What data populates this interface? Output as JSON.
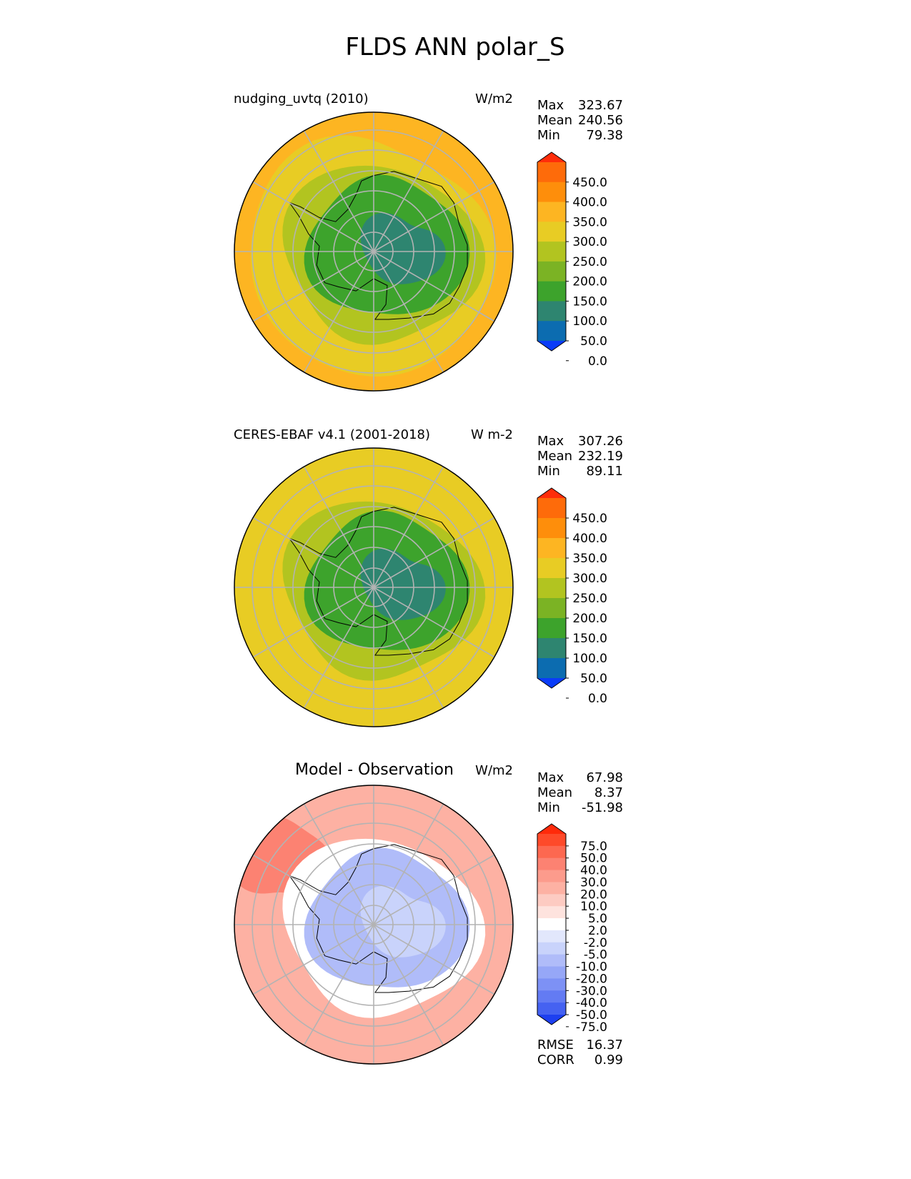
{
  "figure_title": "FLDS ANN polar_S",
  "chart_data": [
    {
      "type": "heatmap",
      "projection": "south polar stereographic",
      "title": "nudging_uvtq (2010)",
      "units": "W/m2",
      "stats": [
        {
          "label": "Max",
          "value": "323.67"
        },
        {
          "label": "Mean",
          "value": "240.56"
        },
        {
          "label": "Min",
          "value": "79.38"
        }
      ],
      "colorbar": {
        "tick_labels": [
          "450.0",
          "400.0",
          "350.0",
          "300.0",
          "250.0",
          "200.0",
          "150.0",
          "100.0",
          "50.0",
          "0.0"
        ],
        "colors": [
          "#ff2d0a",
          "#fe6b0a",
          "#fe8e0b",
          "#fdb522",
          "#e8cc24",
          "#b2c420",
          "#7bb324",
          "#3da32c",
          "#2e8570",
          "#0c6cb0",
          "#0a3cf8"
        ],
        "extend": "both"
      },
      "regions": {
        "ocean_outer": "#fdb522",
        "ocean_inner": "#e8cc24",
        "coast_band": "#b2c420",
        "interior": "#3da32c",
        "plateau": "#2e8570"
      },
      "grid": true
    },
    {
      "type": "heatmap",
      "projection": "south polar stereographic",
      "title": "CERES-EBAF v4.1 (2001-2018)",
      "units": "W m-2",
      "stats": [
        {
          "label": "Max",
          "value": "307.26"
        },
        {
          "label": "Mean",
          "value": "232.19"
        },
        {
          "label": "Min",
          "value": "89.11"
        }
      ],
      "colorbar": {
        "tick_labels": [
          "450.0",
          "400.0",
          "350.0",
          "300.0",
          "250.0",
          "200.0",
          "150.0",
          "100.0",
          "50.0",
          "0.0"
        ],
        "colors": [
          "#ff2d0a",
          "#fe6b0a",
          "#fe8e0b",
          "#fdb522",
          "#e8cc24",
          "#b2c420",
          "#7bb324",
          "#3da32c",
          "#2e8570",
          "#0c6cb0",
          "#0a3cf8"
        ],
        "extend": "both"
      },
      "regions": {
        "ocean_outer": "#e8cc24",
        "ocean_inner": "#e8cc24",
        "coast_band": "#b2c420",
        "interior": "#3da32c",
        "plateau": "#2e8570"
      },
      "grid": true
    },
    {
      "type": "heatmap",
      "projection": "south polar stereographic",
      "title": "Model - Observation",
      "units": "W/m2",
      "stats": [
        {
          "label": "Max",
          "value": "67.98"
        },
        {
          "label": "Mean",
          "value": "8.37"
        },
        {
          "label": "Min",
          "value": "-51.98"
        }
      ],
      "colorbar": {
        "tick_labels": [
          "75.0",
          "50.0",
          "40.0",
          "30.0",
          "20.0",
          "10.0",
          "5.0",
          "2.0",
          "-2.0",
          "-5.0",
          "-10.0",
          "-20.0",
          "-30.0",
          "-40.0",
          "-50.0",
          "-75.0"
        ],
        "colors": [
          "#ff2a0a",
          "#fe4a2a",
          "#fd6850",
          "#fc8272",
          "#fc9b8c",
          "#fdb1a3",
          "#fdcbc2",
          "#fee3de",
          "#ffffff",
          "#e2e7fc",
          "#c9d3fb",
          "#b0bcf9",
          "#96a7f7",
          "#7d91f5",
          "#637bf3",
          "#4562f1",
          "#1d3ff0"
        ],
        "extend": "both"
      },
      "regions": {
        "ocean_outer": "#fdb1a3",
        "ocean_inner": "#fdb1a3",
        "coast_band": "#ffffff",
        "interior": "#b0bcf9",
        "plateau": "#c9d3fb",
        "peninsula": "#fc8272"
      },
      "grid": true,
      "footer_stats": [
        {
          "label": "RMSE",
          "value": "16.37"
        },
        {
          "label": "CORR",
          "value": "0.99"
        }
      ]
    }
  ]
}
